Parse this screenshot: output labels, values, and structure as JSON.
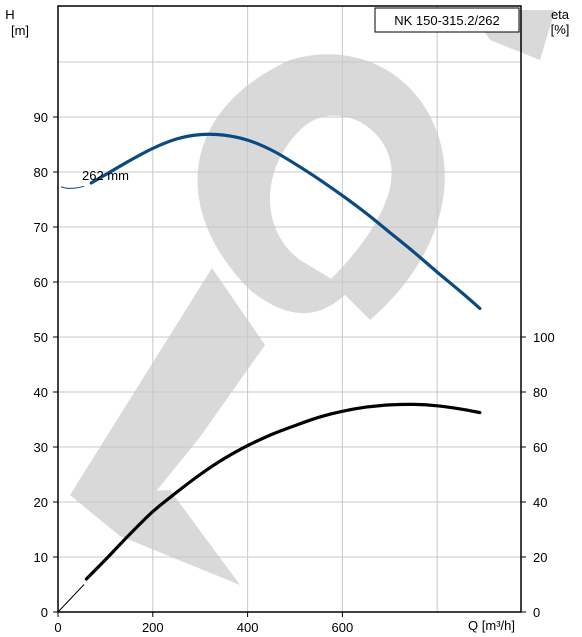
{
  "chart_data": {
    "type": "line",
    "title": "NK 150-315.2/262",
    "xlabel": "Q [m³/h]",
    "ylabel_left_name": "H",
    "ylabel_left_unit": "[m]",
    "ylabel_right_name": "eta",
    "ylabel_right_unit": "[%]",
    "xlim": [
      0,
      1000
    ],
    "ylim_left": [
      0,
      110
    ],
    "ylim_right": [
      0,
      100
    ],
    "x_ticks": [
      0,
      200,
      400,
      600
    ],
    "y_left_ticks": [
      0,
      10,
      20,
      30,
      40,
      50,
      60,
      70,
      80,
      90
    ],
    "y_right_ticks": [
      0,
      20,
      40,
      60,
      80,
      100
    ],
    "grid": true,
    "colors": {
      "head": "#0b4a80",
      "efficiency": "#000000",
      "grid": "#c8c8c8",
      "watermark": "#d9d9d9"
    },
    "annotation": {
      "text": "262 mm"
    },
    "series": [
      {
        "axis": "left",
        "x": [
          70,
          100,
          150,
          200,
          250,
          300,
          350,
          400,
          450,
          500,
          550,
          600,
          650,
          700,
          750,
          800,
          850,
          890
        ],
        "values": [
          78,
          79.5,
          82,
          84.3,
          86,
          86.8,
          86.7,
          85.8,
          84,
          81.5,
          78.7,
          75.7,
          72.5,
          69,
          65.5,
          61.8,
          58.2,
          55.2
        ]
      },
      {
        "axis": "right",
        "x": [
          60,
          100,
          150,
          200,
          250,
          300,
          350,
          400,
          450,
          500,
          550,
          600,
          650,
          700,
          750,
          800,
          850,
          890
        ],
        "values": [
          12,
          19,
          28,
          36.5,
          43.5,
          50,
          55.7,
          60.5,
          64.5,
          67.8,
          70.8,
          73,
          74.5,
          75.3,
          75.5,
          75,
          73.8,
          72.5
        ]
      }
    ]
  }
}
